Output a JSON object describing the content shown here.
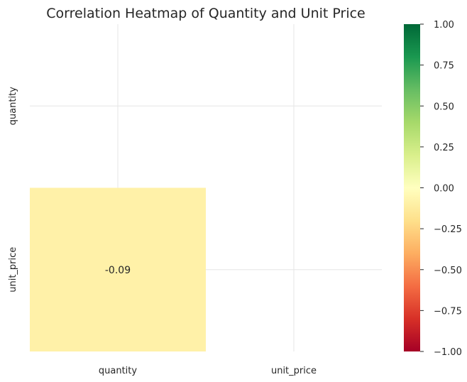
{
  "chart_data": {
    "type": "heatmap",
    "title": "Correlation Heatmap of Quantity and Unit Price",
    "x_categories": [
      "quantity",
      "unit_price"
    ],
    "y_categories": [
      "quantity",
      "unit_price"
    ],
    "matrix": [
      [
        null,
        null
      ],
      [
        -0.09,
        null
      ]
    ],
    "annotations": [
      [
        null,
        null
      ],
      [
        "-0.09",
        null
      ]
    ],
    "mask": "upper triangle including diagonal",
    "colorscale": {
      "name": "RdYlGn",
      "vmin": -1.0,
      "vmax": 1.0,
      "stops": [
        "#a50026",
        "#d73027",
        "#f46d43",
        "#fdae61",
        "#fee08b",
        "#ffffbf",
        "#d9ef8b",
        "#a6d96a",
        "#66bd63",
        "#1a9850",
        "#006837"
      ]
    },
    "colorbar_ticks": [
      "1.00",
      "0.75",
      "0.50",
      "0.25",
      "0.00",
      "−0.25",
      "−0.50",
      "−0.75",
      "−1.00"
    ],
    "colorbar_tick_values": [
      1.0,
      0.75,
      0.5,
      0.25,
      0.0,
      -0.25,
      -0.5,
      -0.75,
      -1.0
    ],
    "grid": true,
    "grid_color": "#e6e6e6",
    "text_color": "#262626"
  }
}
